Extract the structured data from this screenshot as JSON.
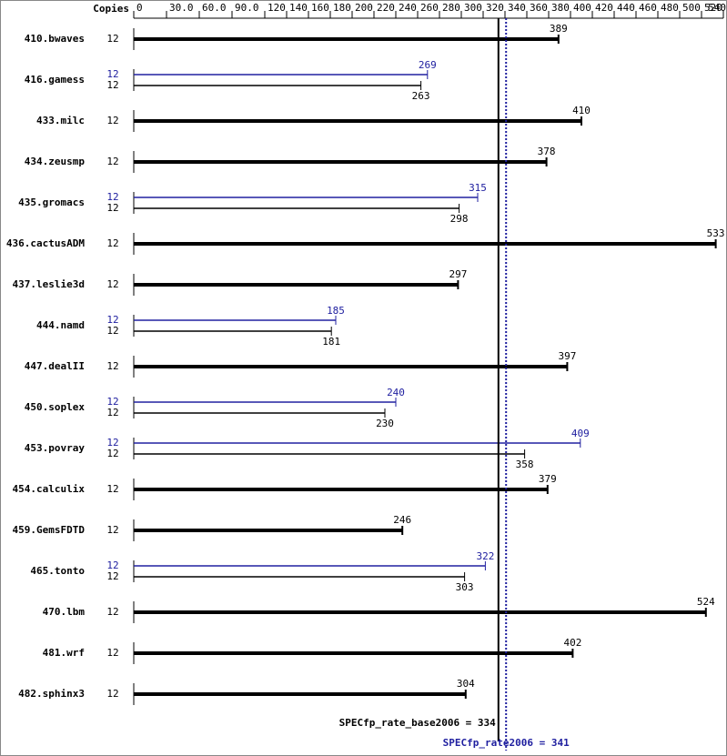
{
  "chart_data": {
    "type": "bar",
    "orientation": "horizontal",
    "copies_header": "Copies",
    "categories": [
      "410.bwaves",
      "416.gamess",
      "433.milc",
      "434.zeusmp",
      "435.gromacs",
      "436.cactusADM",
      "437.leslie3d",
      "444.namd",
      "447.dealII",
      "450.soplex",
      "453.povray",
      "454.calculix",
      "459.GemsFDTD",
      "465.tonto",
      "470.lbm",
      "481.wrf",
      "482.sphinx3"
    ],
    "series": [
      {
        "color": "#000000",
        "copies": [
          12,
          12,
          12,
          12,
          12,
          12,
          12,
          12,
          12,
          12,
          12,
          12,
          12,
          12,
          12,
          12,
          12
        ],
        "values": [
          389,
          263,
          410,
          378,
          298,
          533,
          297,
          181,
          397,
          230,
          358,
          379,
          246,
          303,
          524,
          402,
          304
        ]
      },
      {
        "color": "#2020a0",
        "copies": [
          null,
          12,
          null,
          null,
          12,
          null,
          null,
          12,
          null,
          12,
          12,
          null,
          null,
          12,
          null,
          null,
          null
        ],
        "values": [
          null,
          269,
          null,
          null,
          315,
          null,
          null,
          185,
          null,
          240,
          409,
          null,
          null,
          322,
          null,
          null,
          null
        ]
      }
    ],
    "xlim": [
      0,
      540
    ],
    "xticks": [
      0,
      {
        "value": 30,
        "label": "30.0"
      },
      {
        "value": 60,
        "label": "60.0"
      },
      {
        "value": 90,
        "label": "90.0"
      },
      120,
      140,
      160,
      180,
      200,
      220,
      240,
      260,
      280,
      300,
      320,
      340,
      360,
      380,
      400,
      420,
      440,
      460,
      480,
      500,
      520,
      540
    ],
    "reference_lines": [
      {
        "label": "SPECfp_rate_base2006 = 334",
        "value": 334,
        "color": "#000000",
        "style": "solid"
      },
      {
        "label": "SPECfp_rate2006 = 341",
        "value": 341,
        "color": "#2020a0",
        "style": "dotted"
      }
    ]
  }
}
